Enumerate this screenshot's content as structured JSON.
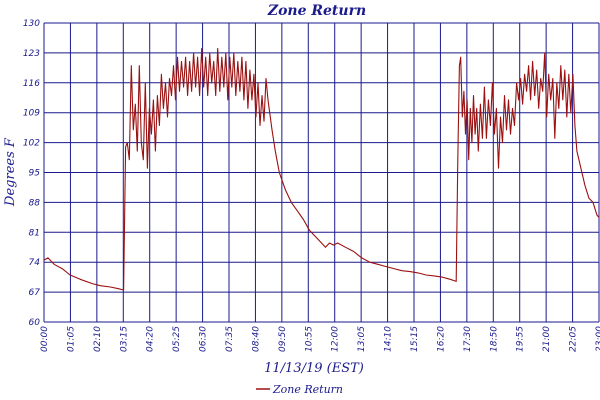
{
  "chart_data": {
    "type": "line",
    "title": "Zone Return",
    "xlabel": "11/13/19 (EST)",
    "ylabel": "Degrees F",
    "ylim": [
      60,
      130
    ],
    "yticks": [
      "60",
      "67",
      "74",
      "81",
      "88",
      "95",
      "102",
      "109",
      "116",
      "123",
      "130"
    ],
    "xlim": [
      "00:00",
      "23:00"
    ],
    "xticks": [
      "00:00",
      "01:05",
      "02:10",
      "03:15",
      "04:20",
      "05:25",
      "06:30",
      "07:35",
      "08:40",
      "09:50",
      "10:55",
      "12:00",
      "13:05",
      "14:10",
      "15:15",
      "16:20",
      "17:30",
      "18:50",
      "19:55",
      "21:00",
      "22:05",
      "23:00"
    ],
    "grid": true,
    "legend_position": "bottom-center",
    "colors": {
      "series": "#9b1010",
      "grid": "#1a1a8c",
      "text": "#1a1a8c"
    },
    "series": [
      {
        "name": "Zone Return",
        "points": [
          [
            "00:00",
            74.5
          ],
          [
            "00:10",
            75.0
          ],
          [
            "00:25",
            73.5
          ],
          [
            "00:45",
            72.5
          ],
          [
            "01:05",
            71.0
          ],
          [
            "01:30",
            70.0
          ],
          [
            "02:00",
            69.0
          ],
          [
            "02:20",
            68.5
          ],
          [
            "02:45",
            68.2
          ],
          [
            "03:05",
            67.8
          ],
          [
            "03:18",
            67.5
          ],
          [
            "03:23",
            101
          ],
          [
            "03:27",
            102
          ],
          [
            "03:32",
            98
          ],
          [
            "03:37",
            120
          ],
          [
            "03:42",
            105
          ],
          [
            "03:47",
            111
          ],
          [
            "03:52",
            100
          ],
          [
            "03:57",
            120
          ],
          [
            "04:02",
            102
          ],
          [
            "04:07",
            98
          ],
          [
            "04:12",
            116
          ],
          [
            "04:17",
            96
          ],
          [
            "04:22",
            110
          ],
          [
            "04:27",
            104
          ],
          [
            "04:32",
            112
          ],
          [
            "04:37",
            100
          ],
          [
            "04:42",
            113
          ],
          [
            "04:47",
            106
          ],
          [
            "04:52",
            118
          ],
          [
            "04:57",
            110
          ],
          [
            "05:02",
            116
          ],
          [
            "05:07",
            108
          ],
          [
            "05:12",
            117
          ],
          [
            "05:17",
            113
          ],
          [
            "05:22",
            120
          ],
          [
            "05:27",
            112
          ],
          [
            "05:32",
            122
          ],
          [
            "05:37",
            114
          ],
          [
            "05:42",
            121
          ],
          [
            "05:47",
            115
          ],
          [
            "05:52",
            122
          ],
          [
            "05:57",
            113
          ],
          [
            "06:02",
            121
          ],
          [
            "06:07",
            114
          ],
          [
            "06:12",
            123
          ],
          [
            "06:17",
            115
          ],
          [
            "06:22",
            122
          ],
          [
            "06:27",
            113
          ],
          [
            "06:32",
            124
          ],
          [
            "06:37",
            115
          ],
          [
            "06:42",
            122
          ],
          [
            "06:47",
            113
          ],
          [
            "06:52",
            123
          ],
          [
            "06:57",
            116
          ],
          [
            "07:02",
            121
          ],
          [
            "07:07",
            113
          ],
          [
            "07:12",
            124
          ],
          [
            "07:17",
            114
          ],
          [
            "07:22",
            122
          ],
          [
            "07:27",
            115
          ],
          [
            "07:32",
            123
          ],
          [
            "07:37",
            112
          ],
          [
            "07:42",
            122
          ],
          [
            "07:47",
            115
          ],
          [
            "07:52",
            123
          ],
          [
            "07:57",
            113
          ],
          [
            "08:02",
            121
          ],
          [
            "08:07",
            114
          ],
          [
            "08:12",
            122
          ],
          [
            "08:17",
            112
          ],
          [
            "08:22",
            121
          ],
          [
            "08:27",
            110
          ],
          [
            "08:32",
            119
          ],
          [
            "08:37",
            112
          ],
          [
            "08:42",
            118
          ],
          [
            "08:47",
            108
          ],
          [
            "08:52",
            116
          ],
          [
            "08:57",
            106
          ],
          [
            "09:02",
            113
          ],
          [
            "09:07",
            107
          ],
          [
            "09:12",
            117
          ],
          [
            "09:17",
            112
          ],
          [
            "09:27",
            105
          ],
          [
            "09:35",
            100
          ],
          [
            "09:45",
            95
          ],
          [
            "10:00",
            91
          ],
          [
            "10:15",
            88
          ],
          [
            "10:30",
            86
          ],
          [
            "10:45",
            84
          ],
          [
            "11:00",
            81.5
          ],
          [
            "11:15",
            80
          ],
          [
            "11:30",
            78.5
          ],
          [
            "11:40",
            77.5
          ],
          [
            "11:50",
            78.5
          ],
          [
            "12:00",
            78
          ],
          [
            "12:10",
            78.5
          ],
          [
            "12:30",
            77.5
          ],
          [
            "12:50",
            76.5
          ],
          [
            "13:10",
            75
          ],
          [
            "13:30",
            74
          ],
          [
            "13:50",
            73.5
          ],
          [
            "14:10",
            73
          ],
          [
            "14:30",
            72.5
          ],
          [
            "14:50",
            72
          ],
          [
            "15:10",
            71.8
          ],
          [
            "15:30",
            71.5
          ],
          [
            "15:50",
            71
          ],
          [
            "16:10",
            70.8
          ],
          [
            "16:30",
            70.5
          ],
          [
            "16:50",
            70
          ],
          [
            "17:05",
            69.5
          ],
          [
            "17:09",
            98
          ],
          [
            "17:13",
            120
          ],
          [
            "17:16",
            122
          ],
          [
            "17:20",
            108
          ],
          [
            "17:24",
            114
          ],
          [
            "17:28",
            104
          ],
          [
            "17:32",
            112
          ],
          [
            "17:36",
            98
          ],
          [
            "17:40",
            110
          ],
          [
            "17:44",
            102
          ],
          [
            "17:48",
            113
          ],
          [
            "17:52",
            104
          ],
          [
            "17:56",
            110
          ],
          [
            "18:00",
            100
          ],
          [
            "18:05",
            111
          ],
          [
            "18:10",
            103
          ],
          [
            "18:15",
            115
          ],
          [
            "18:20",
            103
          ],
          [
            "18:25",
            112
          ],
          [
            "18:30",
            106
          ],
          [
            "18:35",
            116
          ],
          [
            "18:40",
            104
          ],
          [
            "18:45",
            110
          ],
          [
            "18:50",
            96
          ],
          [
            "18:55",
            108
          ],
          [
            "19:00",
            102
          ],
          [
            "19:05",
            113
          ],
          [
            "19:10",
            105
          ],
          [
            "19:15",
            112
          ],
          [
            "19:20",
            104
          ],
          [
            "19:25",
            110
          ],
          [
            "19:30",
            106
          ],
          [
            "19:35",
            116
          ],
          [
            "19:40",
            112
          ],
          [
            "19:45",
            117
          ],
          [
            "19:50",
            111
          ],
          [
            "19:55",
            118
          ],
          [
            "20:00",
            114
          ],
          [
            "20:05",
            120
          ],
          [
            "20:10",
            112
          ],
          [
            "20:15",
            121
          ],
          [
            "20:20",
            113
          ],
          [
            "20:25",
            119
          ],
          [
            "20:30",
            110
          ],
          [
            "20:35",
            117
          ],
          [
            "20:40",
            114
          ],
          [
            "20:45",
            123
          ],
          [
            "20:50",
            108
          ],
          [
            "20:55",
            118
          ],
          [
            "21:00",
            112
          ],
          [
            "21:05",
            117
          ],
          [
            "21:10",
            103
          ],
          [
            "21:15",
            116
          ],
          [
            "21:20",
            110
          ],
          [
            "21:25",
            120
          ],
          [
            "21:30",
            112
          ],
          [
            "21:35",
            119
          ],
          [
            "21:40",
            108
          ],
          [
            "21:45",
            118
          ],
          [
            "21:50",
            109
          ],
          [
            "21:55",
            118
          ],
          [
            "22:00",
            106
          ],
          [
            "22:05",
            100
          ],
          [
            "22:15",
            96
          ],
          [
            "22:25",
            92
          ],
          [
            "22:35",
            89
          ],
          [
            "22:45",
            88
          ],
          [
            "22:55",
            85
          ],
          [
            "23:00",
            84.5
          ]
        ]
      }
    ]
  }
}
